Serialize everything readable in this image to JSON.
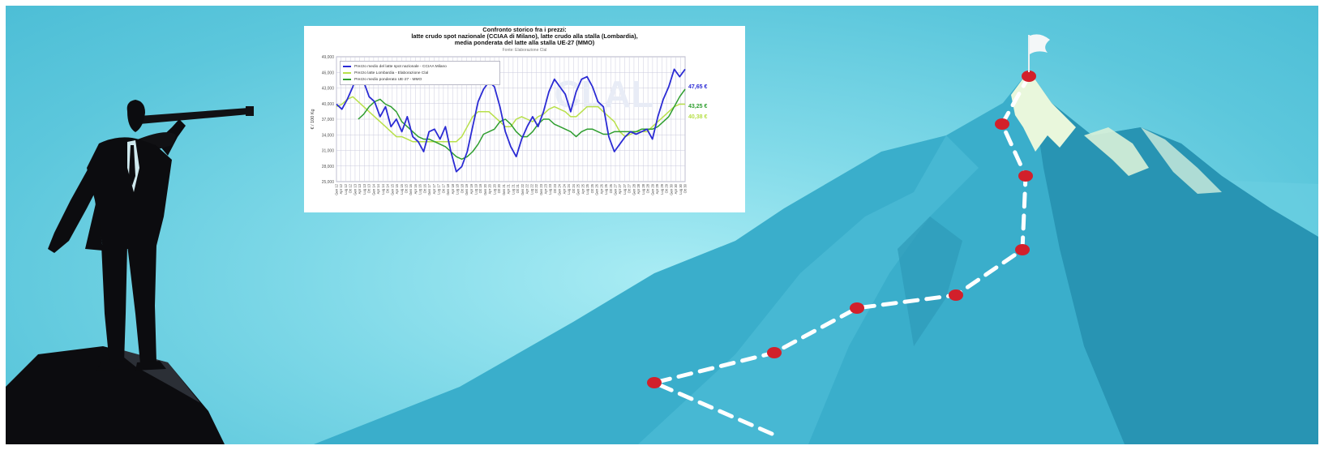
{
  "colors": {
    "sky": "#5cc7dc",
    "mountain": "#2f9fbd",
    "trail": "#ffffff",
    "marker": "#d2202b",
    "silhouette": "#0c0c0f",
    "series_spot": "#2b2bd4",
    "series_lombardia": "#b8e04a",
    "series_ue": "#2f9e2f"
  },
  "scene": {
    "figure": "businessman-with-telescope-silhouette",
    "summit_flag": "white-flag-icon",
    "waypoint_count": 9
  },
  "chart_data": {
    "type": "line",
    "title_lines": [
      "Confronto storico fra i prezzi:",
      "latte crudo spot nazionale (CCIAA di Milano), latte crudo alla stalla (Lombardia),",
      "media ponderata del latte alla stalla UE-27 (MMO)"
    ],
    "source": "Fonte: Elaborazione Clal",
    "watermark": "CLAL",
    "ylabel": "€ / 100 Kg",
    "ylim": [
      25,
      50
    ],
    "y_ticks": [
      "25,000",
      "28,000",
      "31,000",
      "34,000",
      "37,000",
      "40,000",
      "43,000",
      "46,000",
      "49,000"
    ],
    "x_tick_labels": [
      "Gen 12",
      "Apr 12",
      "Lug 12",
      "Ott 12",
      "Gen 13",
      "Apr 13",
      "Lug 13",
      "Ott 13",
      "Gen 14",
      "Apr 14",
      "Lug 14",
      "Ott 14",
      "Gen 15",
      "Apr 15",
      "Lug 15",
      "Ott 15",
      "Gen 16",
      "Apr 16",
      "Lug 16",
      "Ott 16",
      "Gen 17",
      "Apr 17",
      "Lug 17",
      "Ott 17",
      "Gen 18",
      "Apr 18",
      "Lug 18",
      "Ott 18",
      "Gen 19",
      "Apr 19",
      "Lug 19",
      "Ott 19",
      "Gen 20",
      "Apr 20",
      "Lug 20",
      "Ott 20",
      "Gen 21",
      "Apr 21",
      "Lug 21",
      "Ott 21",
      "Gen 22",
      "Apr 22",
      "Lug 22",
      "Ott 22",
      "Gen 23",
      "Apr 23",
      "Lug 23",
      "Ott 23",
      "Gen 24",
      "Apr 24",
      "Lug 24",
      "Ott 24",
      "Gen 25",
      "Apr 25",
      "Lug 25",
      "Ott 25",
      "Gen 26",
      "Apr 26",
      "Lug 26",
      "Ott 26",
      "Gen 27",
      "Apr 27",
      "Lug 27",
      "Ott 27",
      "Gen 28",
      "Apr 28",
      "Lug 28",
      "Ott 28",
      "Gen 29",
      "Apr 29",
      "Lug 29",
      "Ott 29",
      "Gen 30",
      "Apr 30",
      "Lug 30",
      "Ott 30"
    ],
    "series": [
      {
        "name": "Prezzo medio del latte spot nazionale - CCIAA Milano",
        "color": "#2b2bd4",
        "end_label": "47,65 €",
        "values": [
          40.5,
          39.5,
          41.5,
          44,
          47.5,
          45,
          42,
          41,
          38,
          40,
          36,
          37.5,
          35,
          38,
          34,
          33,
          31,
          35,
          35.5,
          33.5,
          36,
          31,
          27,
          28,
          31,
          36,
          41,
          43.5,
          45,
          44,
          40,
          35,
          32,
          30,
          33.5,
          36,
          38,
          36,
          39,
          43,
          45.5,
          44,
          42.5,
          39,
          43,
          45.5,
          46,
          44,
          41,
          40,
          34,
          31,
          32.5,
          34,
          35,
          34.5,
          35,
          35.5,
          33.5,
          38,
          41.5,
          44,
          47.5,
          46,
          47.5
        ]
      },
      {
        "name": "Prezzo latte Lombardia - Elaborazione Clal",
        "color": "#b8e04a",
        "end_label": "40,38 €",
        "values": [
          40,
          40.5,
          41.5,
          42,
          41,
          40,
          39,
          38,
          37,
          36,
          35,
          34,
          34,
          33.5,
          33,
          33,
          33,
          33,
          33,
          33,
          33,
          33,
          33,
          34,
          36,
          38,
          39,
          39,
          39,
          38,
          37,
          36,
          36,
          37.5,
          38,
          37.5,
          37,
          38,
          38.5,
          39.5,
          40,
          39.5,
          39,
          38,
          38,
          39,
          40,
          40,
          40,
          39,
          38,
          37,
          35,
          34,
          34.5,
          35,
          35,
          35,
          36,
          37,
          38,
          39,
          40,
          40.5,
          40.5
        ]
      },
      {
        "name": "Prezzo medio ponderato UE-27 - MMO",
        "color": "#2f9e2f",
        "end_label": "43,25 €",
        "values": [
          null,
          null,
          null,
          null,
          37.5,
          38.5,
          40,
          41,
          41.5,
          40.5,
          40,
          39,
          37,
          36,
          35,
          34,
          33.5,
          33.5,
          33,
          32.5,
          32,
          31,
          30,
          29.5,
          30,
          31,
          32.5,
          34.5,
          35,
          35.5,
          37,
          37.5,
          36.5,
          35,
          34,
          34,
          35,
          36.5,
          37.5,
          37.5,
          36.5,
          36,
          35.5,
          35,
          34,
          35,
          35.5,
          35.5,
          35,
          34.5,
          34.5,
          35,
          35,
          35,
          35,
          35,
          35.5,
          35.5,
          35.5,
          36,
          37,
          38,
          40,
          42,
          43.5
        ]
      }
    ],
    "grid": true,
    "legend_position": "top-left"
  }
}
